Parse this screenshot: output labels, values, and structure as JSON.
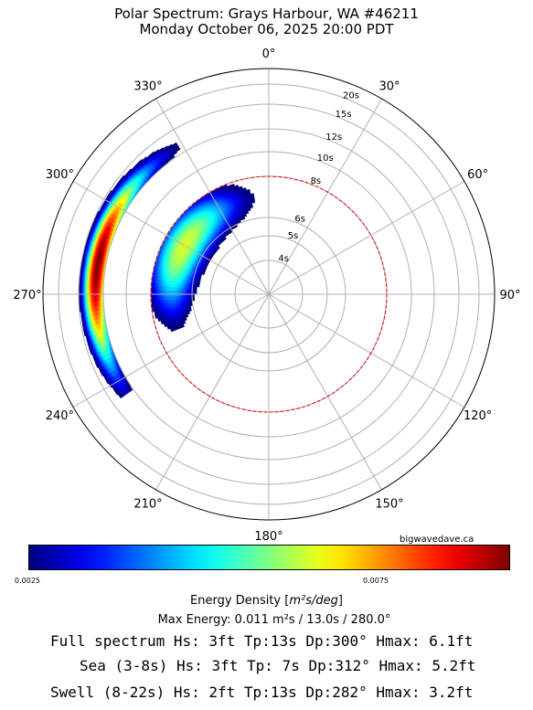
{
  "title_line1": "Polar Spectrum: Grays Harbour, WA #46211",
  "title_line2": "Monday October 06, 2025 20:00 PDT",
  "credit": "bigwavedave.ca",
  "angle_labels": [
    "0°",
    "30°",
    "60°",
    "90°",
    "120°",
    "150°",
    "180°",
    "210°",
    "240°",
    "270°",
    "300°",
    "330°"
  ],
  "period_labels": [
    "4s",
    "5s",
    "6s",
    "8s",
    "10s",
    "12s",
    "15s",
    "20s"
  ],
  "colorbar": {
    "label_prefix": "Energy Density [",
    "label_unit": "m²s/deg",
    "label_suffix": "]",
    "tick_low": "0.0025",
    "tick_high": "0.0075",
    "colormap": "jet"
  },
  "max_energy_text": "Max Energy: 0.011 m²s  /  13.0s  /  280.0°",
  "stats": {
    "full": "Full spectrum Hs: 3ft Tp:13s Dp:300° Hmax: 6.1ft",
    "sea": "Sea (3-8s) Hs: 3ft Tp: 7s Dp:312° Hmax: 5.2ft",
    "swell": "Swell (8-22s) Hs: 2ft Tp:13s Dp:282° Hmax: 3.2ft"
  },
  "chart_data": {
    "type": "heatmap",
    "projection": "polar",
    "theta_zero": "north",
    "theta_direction": "clockwise",
    "angular_ticks_deg": [
      0,
      30,
      60,
      90,
      120,
      150,
      180,
      210,
      240,
      270,
      300,
      330
    ],
    "radial_ticks_period_s": [
      4,
      5,
      6,
      8,
      10,
      12,
      15,
      20
    ],
    "reference_circle_period_s": 8,
    "grid": true,
    "max_energy": 0.011,
    "max_energy_period_s": 13.0,
    "max_energy_direction_deg": 280.0,
    "energy_blobs": [
      {
        "name": "swell",
        "dir_from_deg": 235,
        "dir_to_deg": 330,
        "peak_dir_deg": 280,
        "period_from_s": 12,
        "period_to_s": 16,
        "peak_period_s": 13,
        "peak_energy": 0.011
      },
      {
        "name": "sea",
        "dir_from_deg": 240,
        "dir_to_deg": 355,
        "peak_dir_deg": 300,
        "period_from_s": 5,
        "period_to_s": 8,
        "peak_period_s": 7,
        "peak_energy": 0.0075
      }
    ]
  }
}
